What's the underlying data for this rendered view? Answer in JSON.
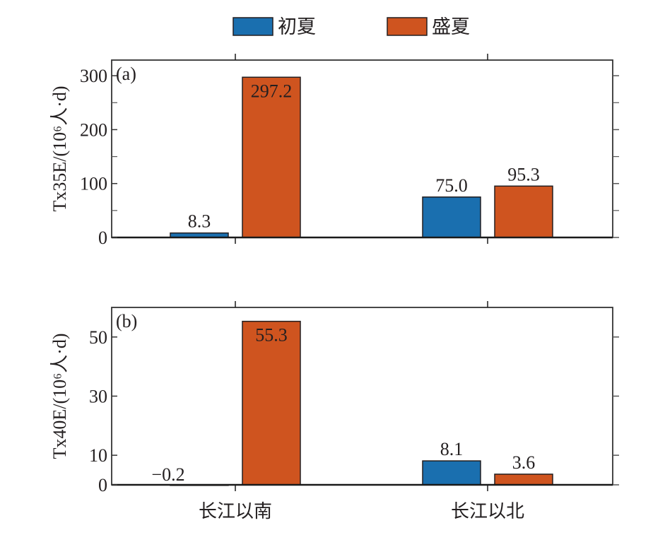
{
  "chart_data": [
    {
      "type": "bar",
      "panel_label": "(a)",
      "ylabel": "Tx35E/(10⁶人·d)",
      "categories": [
        "长江以南",
        "长江以北"
      ],
      "ylim": [
        0,
        329
      ],
      "yticks": [
        0,
        100,
        200,
        300
      ],
      "minor_yticks": [
        50,
        150,
        250
      ],
      "grid": false,
      "series": [
        {
          "name": "初夏",
          "color": "#1a6faf",
          "values": [
            8.3,
            75.0
          ],
          "labels": [
            "8.3",
            "75.0"
          ]
        },
        {
          "name": "盛夏",
          "color": "#cf541f",
          "values": [
            297.2,
            95.3
          ],
          "labels": [
            "297.2",
            "95.3"
          ]
        }
      ]
    },
    {
      "type": "bar",
      "panel_label": "(b)",
      "ylabel": "Tx40E/(10⁶人·d)",
      "categories": [
        "长江以南",
        "长江以北"
      ],
      "ylim": [
        0,
        60
      ],
      "yticks": [
        0,
        10,
        30,
        50
      ],
      "minor_yticks": [],
      "grid": false,
      "series": [
        {
          "name": "初夏",
          "color": "#1a6faf",
          "values": [
            -0.2,
            8.1
          ],
          "labels": [
            "−0.2",
            "8.1"
          ]
        },
        {
          "name": "盛夏",
          "color": "#cf541f",
          "values": [
            55.3,
            3.6
          ],
          "labels": [
            "55.3",
            "3.6"
          ]
        }
      ]
    }
  ],
  "legend": {
    "placement": "top-center",
    "items": [
      {
        "label": "初夏",
        "color": "#1a6faf"
      },
      {
        "label": "盛夏",
        "color": "#cf541f"
      }
    ]
  }
}
